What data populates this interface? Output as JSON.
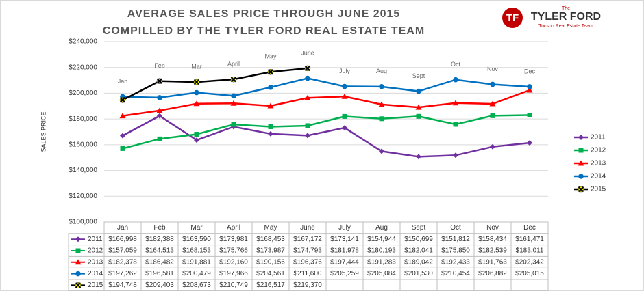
{
  "chart_data": {
    "type": "line",
    "title": "AVERAGE SALES PRICE THROUGH JUNE 2015",
    "subtitle": "COMPILLED BY THE TYLER FORD REAL ESTATE TEAM",
    "y_label": "SALES PRICE",
    "logo": {
      "small": "The",
      "name": "TYLER FORD",
      "tagline": "Tucson Real Estate Team"
    },
    "categories": [
      "Jan",
      "Feb",
      "Mar",
      "April",
      "May",
      "June",
      "July",
      "Aug",
      "Sept",
      "Oct",
      "Nov",
      "Dec"
    ],
    "ylim": [
      100000,
      240000
    ],
    "yticks": [
      {
        "value": 100000,
        "label": "$100,000"
      },
      {
        "value": 120000,
        "label": "$120,000"
      },
      {
        "value": 140000,
        "label": "$140,000"
      },
      {
        "value": 160000,
        "label": "$160,000"
      },
      {
        "value": 180000,
        "label": "$180,000"
      },
      {
        "value": 200000,
        "label": "$200,000"
      },
      {
        "value": 220000,
        "label": "$220,000"
      },
      {
        "value": 240000,
        "label": "$240,000"
      }
    ],
    "grid": true,
    "legend": "right",
    "series": [
      {
        "name": "2011",
        "color": "#7030a0",
        "marker": "diamond",
        "values": [
          166998,
          182388,
          163590,
          173981,
          168453,
          167172,
          173141,
          154944,
          150699,
          151812,
          158434,
          161471
        ],
        "value_labels": [
          "$166,998",
          "$182,388",
          "$163,590",
          "$173,981",
          "$168,453",
          "$167,172",
          "$173,141",
          "$154,944",
          "$150,699",
          "$151,812",
          "$158,434",
          "$161,471"
        ]
      },
      {
        "name": "2012",
        "color": "#00b050",
        "marker": "square",
        "values": [
          157059,
          164513,
          168153,
          175766,
          173987,
          174793,
          181978,
          180193,
          182041,
          175850,
          182539,
          183011
        ],
        "value_labels": [
          "$157,059",
          "$164,513",
          "$168,153",
          "$175,766",
          "$173,987",
          "$174,793",
          "$181,978",
          "$180,193",
          "$182,041",
          "$175,850",
          "$182,539",
          "$183,011"
        ]
      },
      {
        "name": "2013",
        "color": "#ff0000",
        "marker": "triangle",
        "values": [
          182378,
          186482,
          191881,
          192160,
          190156,
          196376,
          197444,
          191283,
          189042,
          192433,
          191763,
          202342
        ],
        "value_labels": [
          "$182,378",
          "$186,482",
          "$191,881",
          "$192,160",
          "$190,156",
          "$196,376",
          "$197,444",
          "$191,283",
          "$189,042",
          "$192,433",
          "$191,763",
          "$202,342"
        ]
      },
      {
        "name": "2014",
        "color": "#0070c0",
        "marker": "circle",
        "values": [
          197262,
          196581,
          200479,
          197966,
          204561,
          211600,
          205259,
          205084,
          201530,
          210454,
          206882,
          205015
        ],
        "value_labels": [
          "$197,262",
          "$196,581",
          "$200,479",
          "$197,966",
          "$204,561",
          "$211,600",
          "$205,259",
          "$205,084",
          "$201,530",
          "$210,454",
          "$206,882",
          "$205,015"
        ]
      },
      {
        "name": "2015",
        "color": "#000000",
        "marker": "x",
        "values": [
          194748,
          209403,
          208673,
          210749,
          216517,
          219370,
          null,
          null,
          null,
          null,
          null,
          null
        ],
        "value_labels": [
          "$194,748",
          "$209,403",
          "$208,673",
          "$210,749",
          "$216,517",
          "$219,370",
          null,
          null,
          null,
          null,
          null,
          null
        ]
      }
    ]
  }
}
